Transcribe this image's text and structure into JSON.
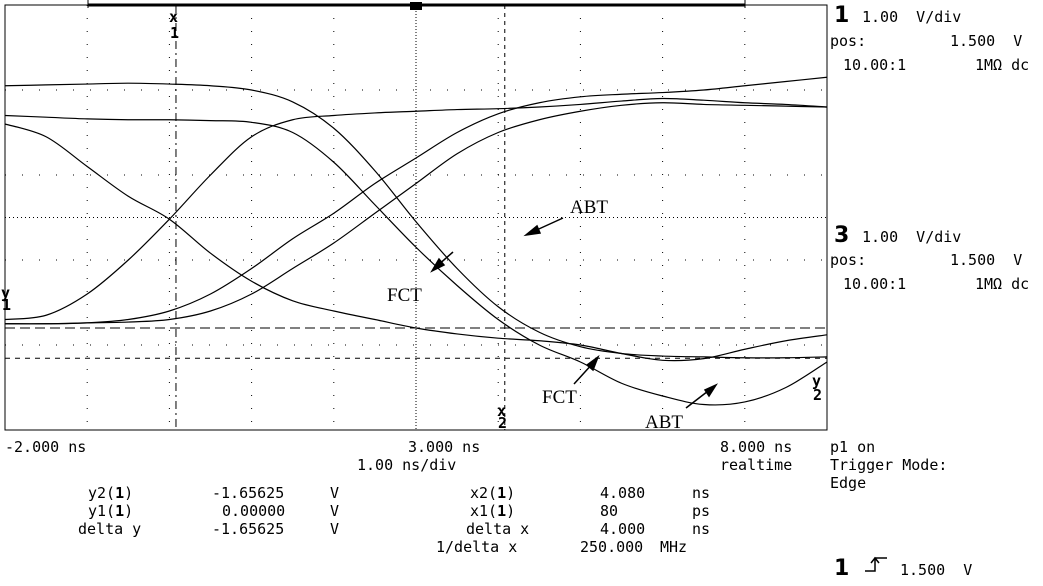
{
  "chart_data": {
    "type": "line",
    "xlabel": "",
    "ylabel": "",
    "xlim": [
      -2.0,
      8.0
    ],
    "ylim": [
      -2.5,
      2.5
    ],
    "grid": true,
    "x_ticks": [
      "-2.000 ns",
      "3.000 ns",
      "8.000 ns"
    ],
    "timebase": "1.00 ns/div",
    "series": [
      {
        "x": [
          -2,
          -1.5,
          -1,
          -0.5,
          0,
          0.5,
          1,
          1.5,
          2,
          2.5,
          3,
          3.5,
          4,
          4.5,
          5,
          5.5,
          6,
          6.5,
          7,
          7.5,
          8
        ],
        "y": [
          1.55,
          1.56,
          1.57,
          1.58,
          1.57,
          1.55,
          1.5,
          1.36,
          1.05,
          0.55,
          -0.05,
          -0.6,
          -1.05,
          -1.35,
          -1.52,
          -1.6,
          -1.63,
          -1.64,
          -1.65,
          -1.65,
          -1.64
        ]
      },
      {
        "x": [
          -2,
          -1.5,
          -1,
          -0.5,
          0,
          0.5,
          1,
          1.5,
          2,
          2.5,
          3,
          3.5,
          4,
          4.5,
          5,
          5.5,
          6,
          6.5,
          7,
          7.5,
          8
        ],
        "y": [
          1.2,
          1.18,
          1.16,
          1.15,
          1.15,
          1.14,
          1.12,
          1.0,
          0.65,
          0.15,
          -0.35,
          -0.8,
          -1.2,
          -1.5,
          -1.7,
          -1.95,
          -2.1,
          -2.2,
          -2.17,
          -2.0,
          -1.7
        ]
      },
      {
        "x": [
          -2,
          -1.5,
          -1,
          -0.5,
          0,
          0.5,
          1,
          1.5,
          2,
          2.5,
          3,
          3.5,
          4,
          4.5,
          5,
          5.5,
          6,
          6.5,
          7,
          7.5,
          8
        ],
        "y": [
          1.1,
          0.95,
          0.6,
          0.25,
          -0.02,
          -0.42,
          -0.75,
          -0.98,
          -1.1,
          -1.2,
          -1.3,
          -1.37,
          -1.42,
          -1.45,
          -1.5,
          -1.6,
          -1.68,
          -1.66,
          -1.55,
          -1.45,
          -1.38
        ]
      },
      {
        "x": [
          -2,
          -1.5,
          -1,
          -0.5,
          0,
          0.5,
          1,
          1.5,
          2,
          2.5,
          3,
          3.5,
          4,
          4.5,
          5,
          5.5,
          6,
          6.5,
          7,
          7.5,
          8
        ],
        "y": [
          -1.2,
          -1.15,
          -0.9,
          -0.5,
          -0.02,
          0.5,
          0.95,
          1.15,
          1.2,
          1.23,
          1.25,
          1.27,
          1.28,
          1.3,
          1.33,
          1.37,
          1.4,
          1.38,
          1.35,
          1.33,
          1.3
        ]
      },
      {
        "x": [
          -2,
          -1.5,
          -1,
          -0.5,
          0,
          0.5,
          1,
          1.5,
          2,
          2.5,
          3,
          3.5,
          4,
          4.5,
          5,
          5.5,
          6,
          6.5,
          7,
          7.5,
          8
        ],
        "y": [
          -1.25,
          -1.25,
          -1.24,
          -1.2,
          -1.1,
          -0.9,
          -0.6,
          -0.25,
          0.05,
          0.4,
          0.7,
          1.0,
          1.22,
          1.35,
          1.42,
          1.45,
          1.47,
          1.5,
          1.55,
          1.6,
          1.65
        ]
      },
      {
        "x": [
          -2,
          -1.5,
          -1,
          -0.5,
          0,
          0.5,
          1,
          1.5,
          2,
          2.5,
          3,
          3.5,
          4,
          4.5,
          5,
          5.5,
          6,
          6.5,
          7,
          7.5,
          8
        ],
        "y": [
          -1.25,
          -1.25,
          -1.24,
          -1.23,
          -1.2,
          -1.1,
          -0.9,
          -0.6,
          -0.3,
          0.05,
          0.4,
          0.75,
          1.0,
          1.15,
          1.25,
          1.32,
          1.35,
          1.33,
          1.32,
          1.31,
          1.3
        ]
      }
    ],
    "annotations": [
      "ABT",
      "FCT",
      "FCT",
      "ABT"
    ]
  },
  "markers": {
    "x1_label": "x",
    "x1_num": "1",
    "x2_label": "x",
    "x2_num": "2",
    "y1_label": "y",
    "y1_num": "1",
    "y2_label": "y",
    "y2_num": "2",
    "x1": 0.08,
    "x2": 4.08,
    "y1": 0.0,
    "y2": -1.65625
  },
  "right_panel": {
    "ch1": {
      "num": "1",
      "scale": "1.00  V/div",
      "pos_label": "pos:",
      "pos_val": "1.500  V",
      "probe": "10.00:1",
      "imp": "1MΩ dc"
    },
    "ch3": {
      "num": "3",
      "scale": "1.00  V/div",
      "pos_label": "pos:",
      "pos_val": "1.500  V",
      "probe": "10.00:1",
      "imp": "1MΩ dc"
    },
    "p1": "p1 on",
    "trigger_mode": "Trigger Mode:",
    "edge": "Edge",
    "trig_ch": "1",
    "trig_level": "1.500  V"
  },
  "bottom": {
    "realtime": "realtime",
    "y2_label": "y2(",
    "y2_ch": "1",
    "y2_close": ")",
    "y2_val": "-1.65625",
    "y2_unit": "V",
    "y1_label": "y1(",
    "y1_ch": "1",
    "y1_close": ")",
    "y1_val": "0.00000",
    "y1_unit": "V",
    "dy_label": "delta y",
    "dy_val": "-1.65625",
    "dy_unit": "V",
    "x2_label": "x2(",
    "x2_ch": "1",
    "x2_close": ")",
    "x2_val": "4.080",
    "x2_unit": "ns",
    "x1_label": "x1(",
    "x1_ch": "1",
    "x1_close": ")",
    "x1_val": "80",
    "x1_unit": "ps",
    "dx_label": "delta x",
    "dx_val": "4.000",
    "dx_unit": "ns",
    "idx_label": "1/delta x",
    "idx_val": "250.000",
    "idx_unit": "MHz"
  },
  "colors": {
    "trace": "#000000",
    "grid": "#000000",
    "background": "#ffffff"
  }
}
